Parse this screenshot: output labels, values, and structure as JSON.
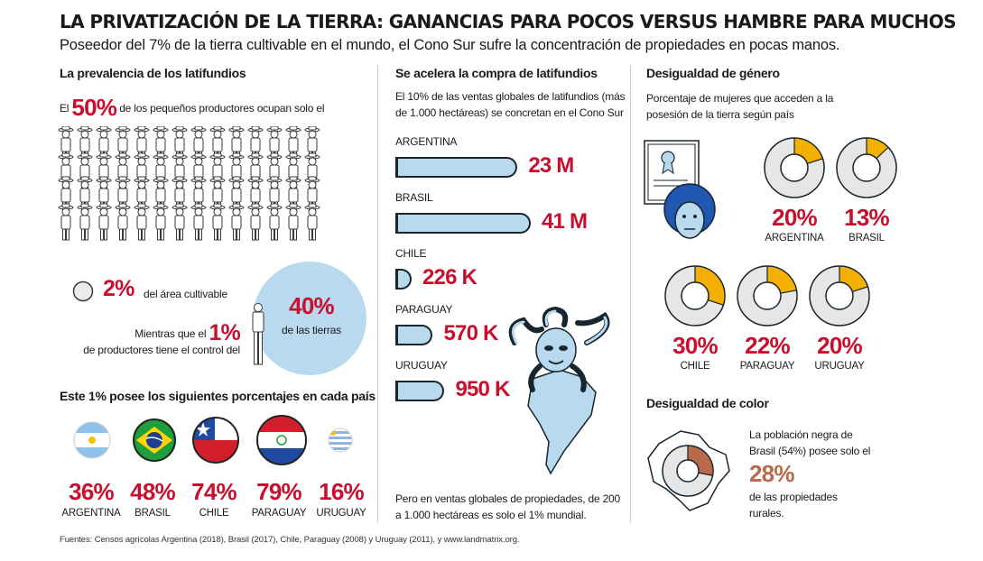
{
  "title": "LA PRIVATIZACIÓN DE LA TIERRA: GANANCIAS PARA POCOS VERSUS HAMBRE PARA MUCHOS",
  "subtitle": "Poseedor del 7% de la tierra cultivable en el mundo, el Cono Sur sufre la concentración de propiedades en pocas manos.",
  "latifundios": {
    "heading": "La prevalencia de los latifundios",
    "line1_pre": "El",
    "line1_pct": "50%",
    "line1_post": "de los pequeños productores ocupan solo el",
    "small_pct": "2%",
    "small_text": "del área cultivable",
    "line2_pre": "Mientras que el",
    "line2_pct": "1%",
    "line2_post": "de productores tiene el control del",
    "big_pct": "40%",
    "big_text": "de las tierras"
  },
  "paises": {
    "heading": "Este 1% posee los siguientes porcentajes en cada país",
    "items": [
      {
        "pct": "36%",
        "name": "ARGENTINA"
      },
      {
        "pct": "48%",
        "name": "BRASIL"
      },
      {
        "pct": "74%",
        "name": "CHILE"
      },
      {
        "pct": "79%",
        "name": "PARAGUAY"
      },
      {
        "pct": "16%",
        "name": "URUGUAY"
      }
    ]
  },
  "compra": {
    "heading": "Se acelera la compra de latifundios",
    "intro_1": "El 10% de las ventas globales de latifundios (más",
    "intro_2": "de 1.000 hectáreas) se concretan en el Cono Sur",
    "footer_1": "Pero en ventas globales de propiedades, de 200",
    "footer_2": "a 1.000 hectáreas es solo el 1% mundial."
  },
  "genero": {
    "heading": "Desigualdad de género",
    "intro_1": "Porcentaje de mujeres que acceden a la",
    "intro_2": "posesión de la tierra según país"
  },
  "color": {
    "heading": "Desigualdad de color",
    "text_1": "La población negra de",
    "text_2": "Brasil (54%) posee solo el",
    "pct": "28%",
    "text_3": "de las propiedades",
    "text_4": "rurales.",
    "share": 0.28,
    "accent": "#b86a4b"
  },
  "fuentes": "Fuentes: Censos agrícolas Argentina (2018), Brasil (2017), Chile, Paraguay (2008) y Uruguay (2011), y www.landmatrix.org.",
  "colors": {
    "red": "#c8102e",
    "bar": "#b9d9ee",
    "donut": "#e6e6e6",
    "accent": "#f4b000",
    "dark": "#17252e"
  },
  "chart_data": [
    {
      "type": "bar",
      "categories": [
        "ARGENTINA",
        "BRASIL",
        "CHILE",
        "PARAGUAY",
        "URUGUAY"
      ],
      "values": [
        23000000,
        41000000,
        226000,
        570000,
        950000
      ],
      "value_labels": [
        "23 M",
        "41 M",
        "226 K",
        "570 K",
        "950 K"
      ]
    },
    {
      "type": "pie",
      "categories": [
        "ARGENTINA",
        "BRASIL",
        "CHILE",
        "PARAGUAY",
        "URUGUAY"
      ],
      "values": [
        20,
        13,
        30,
        22,
        20
      ],
      "value_labels": [
        "20%",
        "13%",
        "30%",
        "22%",
        "20%"
      ]
    }
  ]
}
